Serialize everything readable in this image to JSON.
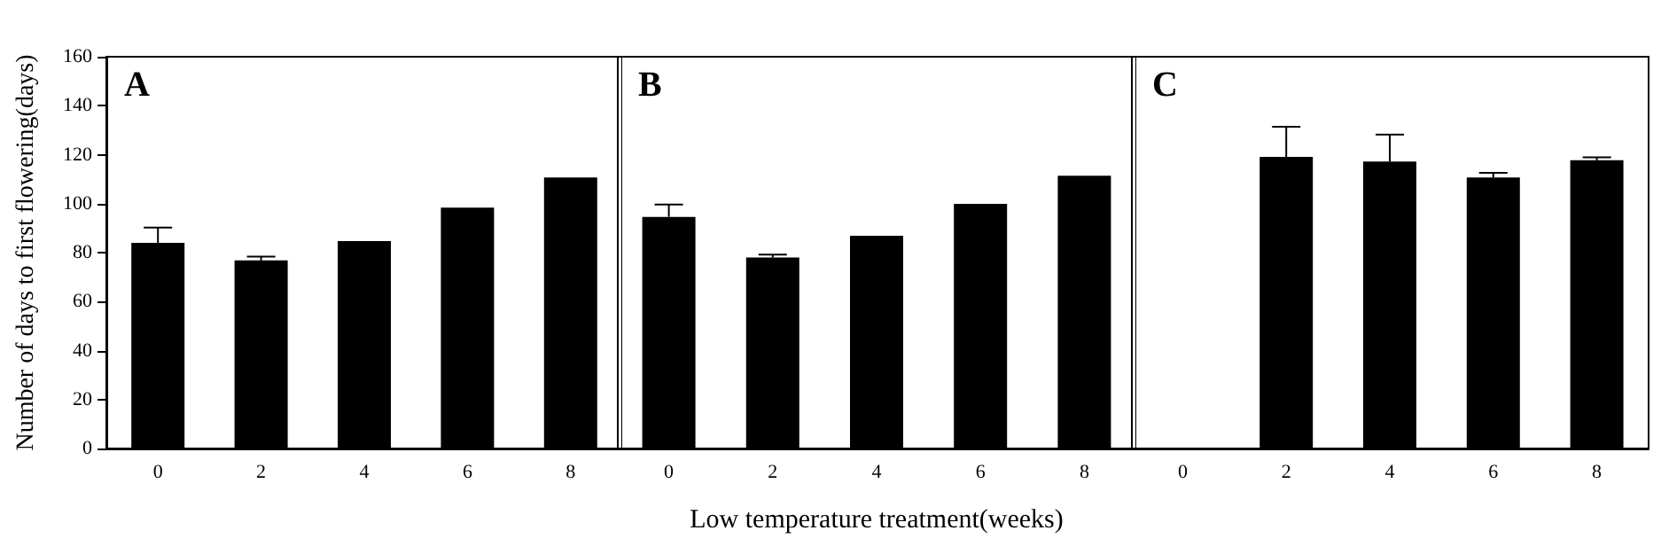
{
  "chart_data": [
    {
      "type": "bar",
      "title": "A",
      "ylabel": "Number of days to first flowering(days)",
      "categories": [
        "0",
        "2",
        "4",
        "6",
        "8"
      ],
      "values": [
        84,
        76.8,
        84.7,
        98.4,
        110.7
      ],
      "errors": [
        6.2,
        1.6,
        null,
        null,
        null
      ],
      "color": "#000000",
      "ylim": [
        0,
        160
      ],
      "yticks": [
        0,
        20,
        40,
        60,
        80,
        100,
        120,
        140,
        160
      ],
      "grid": false
    },
    {
      "type": "bar",
      "title": "B",
      "xlabel": "Low temperature treatment(weeks)",
      "categories": [
        "0",
        "2",
        "4",
        "6",
        "8"
      ],
      "values": [
        94.6,
        78,
        86.9,
        99.9,
        111.4
      ],
      "errors": [
        5,
        1.2,
        null,
        null,
        null
      ],
      "color": "#000000",
      "ylim": [
        0,
        160
      ],
      "yticks": [
        0,
        20,
        40,
        60,
        80,
        100,
        120,
        140,
        160
      ],
      "tick_labels": "x",
      "grid": false
    },
    {
      "type": "bar",
      "title": "C",
      "categories": [
        "0",
        "2",
        "4",
        "6",
        "8"
      ],
      "values": [
        null,
        119.1,
        117.2,
        110.7,
        117.7
      ],
      "errors": [
        null,
        12.3,
        11,
        1.9,
        1.2
      ],
      "color": "#000000",
      "ylim": [
        0,
        160
      ],
      "yticks": [
        0,
        20,
        40,
        60,
        80,
        100,
        120,
        140,
        160
      ],
      "tick_labels": "x",
      "grid": false
    }
  ]
}
